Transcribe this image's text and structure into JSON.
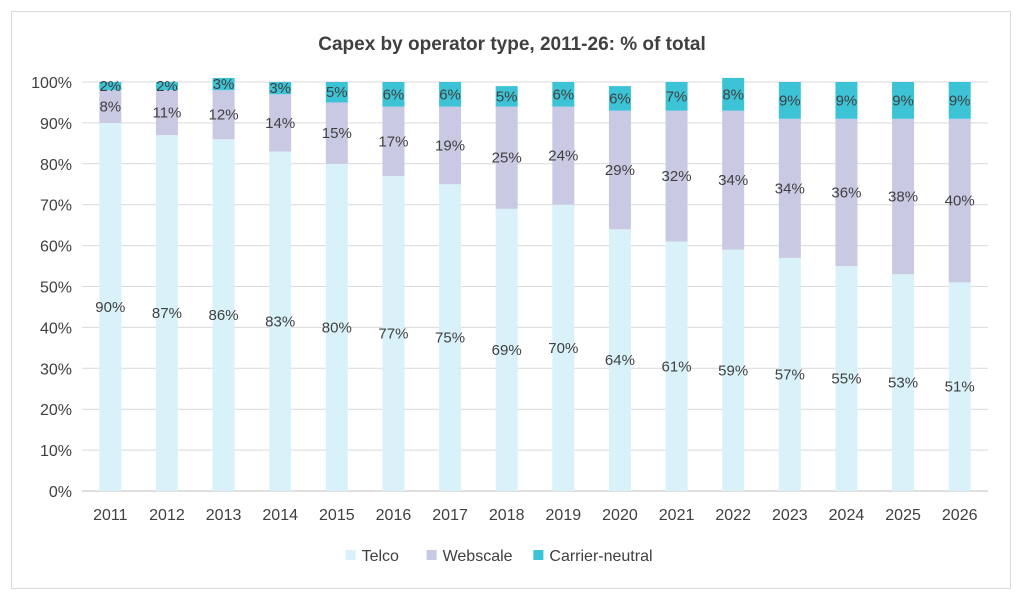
{
  "chart_data": {
    "type": "bar",
    "stacked": true,
    "title": "Capex by operator type, 2011-26: % of total",
    "categories": [
      "2011",
      "2012",
      "2013",
      "2014",
      "2015",
      "2016",
      "2017",
      "2018",
      "2019",
      "2020",
      "2021",
      "2022",
      "2023",
      "2024",
      "2025",
      "2026"
    ],
    "series": [
      {
        "name": "Telco",
        "color": "#d9f2f9",
        "values": [
          90,
          87,
          86,
          83,
          80,
          77,
          75,
          69,
          70,
          64,
          61,
          59,
          57,
          55,
          53,
          51
        ]
      },
      {
        "name": "Webscale",
        "color": "#c9c9e3",
        "values": [
          8,
          11,
          12,
          14,
          15,
          17,
          19,
          25,
          24,
          29,
          32,
          34,
          34,
          36,
          38,
          40
        ]
      },
      {
        "name": "Carrier-neutral",
        "color": "#3cc3d6",
        "values": [
          2,
          2,
          3,
          3,
          5,
          6,
          6,
          5,
          6,
          6,
          7,
          8,
          9,
          9,
          9,
          9
        ]
      }
    ],
    "ylim": [
      0,
      100
    ],
    "yticks": [
      "0%",
      "10%",
      "20%",
      "30%",
      "40%",
      "50%",
      "60%",
      "70%",
      "80%",
      "90%",
      "100%"
    ],
    "grid": true,
    "legend": "bottom"
  }
}
